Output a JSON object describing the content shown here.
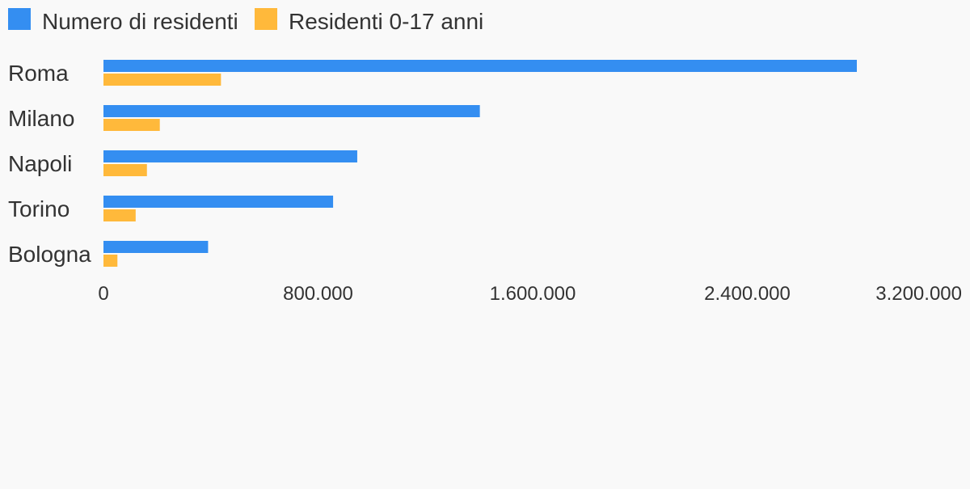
{
  "chart_data": {
    "type": "bar",
    "orientation": "horizontal",
    "title": "",
    "xlabel": "",
    "ylabel": "",
    "categories": [
      "Roma",
      "Milano",
      "Napoli",
      "Torino",
      "Bologna"
    ],
    "series": [
      {
        "name": "Numero di residenti",
        "color": "#348ef1",
        "values": [
          2808293,
          1403000,
          946000,
          856000,
          390000
        ]
      },
      {
        "name": "Residenti 0-17 anni",
        "color": "#ffb93b",
        "values": [
          438000,
          210000,
          162000,
          120000,
          52000
        ]
      }
    ],
    "xlim": [
      0,
      3200000
    ],
    "ticks": [
      0,
      800000,
      1600000,
      2400000,
      3200000
    ],
    "tick_labels": [
      "0",
      "800.000",
      "1.600.000",
      "2.400.000",
      "3.200.000"
    ],
    "grid": false,
    "legend": "top-left"
  }
}
